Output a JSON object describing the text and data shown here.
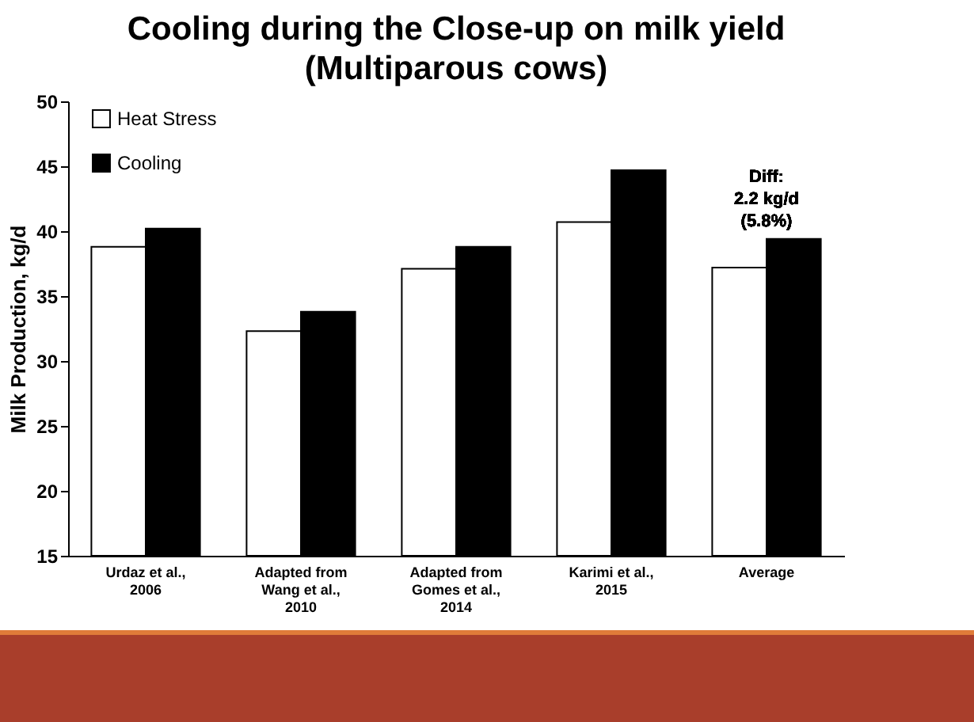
{
  "chart_data": {
    "type": "bar",
    "title": "Cooling during the Close-up on milk yield\n(Multiparous cows)",
    "ylabel": "Milk Production, kg/d",
    "categories": [
      "Urdaz et al., 2006",
      "Adapted from Wang et al., 2010",
      "Adapted from Gomes et al., 2014",
      "Karimi et al., 2015",
      "Average"
    ],
    "series": [
      {
        "name": "Heat Stress",
        "color": "#ffffff",
        "values": [
          38.8,
          32.3,
          37.1,
          40.7,
          37.2
        ]
      },
      {
        "name": "Cooling",
        "color": "#000000",
        "values": [
          40.2,
          33.8,
          38.8,
          44.7,
          39.4
        ]
      }
    ],
    "ylim": [
      15,
      50
    ],
    "yticks": [
      15,
      20,
      25,
      30,
      35,
      40,
      45,
      50
    ],
    "grid": false,
    "legend": "top left",
    "annotations": [
      "Diff:\n2.2 kg/d\n(5.8%)"
    ]
  }
}
